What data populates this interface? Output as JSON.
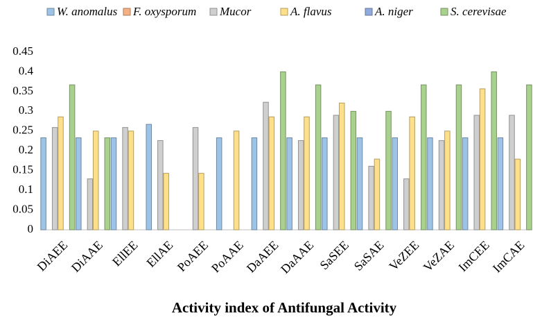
{
  "chart_data": {
    "type": "bar",
    "xlabel": "Activity index of Antifungal Activity",
    "categories": [
      "DiAEE",
      "DiAAE",
      "EllEE",
      "EllAE",
      "PoAEE",
      "PoAAE",
      "DaAEE",
      "DaAAE",
      "SaSEE",
      "SaSAE",
      "VeZEE",
      "VeZAE",
      "ImCEE",
      "ImCAE"
    ],
    "series": [
      {
        "name": "W. anomalus",
        "color": "#9dc3e6",
        "values": [
          0.233,
          0.233,
          0.233,
          0.267,
          0,
          0.233,
          0.233,
          0.233,
          0.233,
          0.233,
          0.233,
          0.233,
          0.233,
          0.233
        ]
      },
      {
        "name": "F. oxysporum",
        "color": "#f4b183",
        "values": [
          0,
          0,
          0,
          0,
          0,
          0,
          0,
          0,
          0,
          0,
          0,
          0,
          0,
          0
        ]
      },
      {
        "name": "Mucor",
        "color": "#cfcfcf",
        "values": [
          0.259,
          0.129,
          0.259,
          0.226,
          0.259,
          0,
          0.323,
          0.226,
          0.29,
          0.161,
          0.129,
          0.226,
          0.29,
          0.29
        ]
      },
      {
        "name": "A. flavus",
        "color": "#ffe08a",
        "values": [
          0.286,
          0.25,
          0.25,
          0.143,
          0.143,
          0.25,
          0.286,
          0.286,
          0.321,
          0.179,
          0.286,
          0.25,
          0.357,
          0.179
        ]
      },
      {
        "name": "A. niger",
        "color": "#8faadc",
        "values": [
          0,
          0,
          0,
          0,
          0,
          0,
          0,
          0,
          0,
          0,
          0,
          0,
          0,
          0
        ]
      },
      {
        "name": "S. cerevisae",
        "color": "#a9d18e",
        "values": [
          0.367,
          0.233,
          0,
          0,
          0,
          0,
          0.4,
          0.367,
          0.3,
          0.3,
          0.367,
          0.367,
          0.4,
          0.367
        ]
      }
    ],
    "ylim": [
      0,
      0.45
    ],
    "yticks": [
      0,
      0.05,
      0.1,
      0.15,
      0.2,
      0.25,
      0.3,
      0.35,
      0.4,
      0.45
    ],
    "legend": "top"
  }
}
